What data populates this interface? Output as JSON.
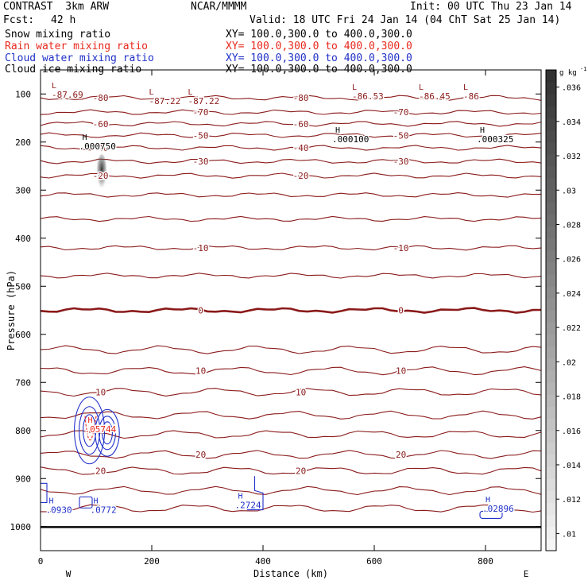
{
  "header": {
    "title": "CONTRAST  3km ARW",
    "model": "NCAR/MMMM",
    "init": "Init: 00 UTC Thu 23 Jan 14",
    "fcst_label": "Fcst:",
    "fcst_value": "42 h",
    "valid": "Valid: 18 UTC Fri 24 Jan 14 (04 ChT Sat 25 Jan 14)"
  },
  "fields": [
    {
      "name": "Snow mixing ratio",
      "xy": "XY= 100.0,300.0 to 400.0,300.0",
      "color": "#000000"
    },
    {
      "name": "Rain water mixing ratio",
      "xy": "XY= 100.0,300.0 to 400.0,300.0",
      "color": "#e8281c"
    },
    {
      "name": "Cloud water mixing ratio",
      "xy": "XY= 100.0,300.0 to 400.0,300.0",
      "color": "#2030c8"
    },
    {
      "name": "Cloud ice mixing ratio",
      "xy": "XY= 100.0,300.0 to 400.0,300.0",
      "color": "#000000"
    }
  ],
  "chart_data": {
    "type": "contour",
    "xlabel": "Distance (km)",
    "ylabel": "Pressure (hPa)",
    "xlim": [
      0,
      900
    ],
    "ylim": [
      1050,
      50
    ],
    "x_ticks": [
      0,
      200,
      400,
      600,
      800
    ],
    "y_ticks": [
      100,
      200,
      300,
      400,
      500,
      600,
      700,
      800,
      900,
      1000
    ],
    "left_end_label": "W",
    "right_end_label": "E",
    "colorbar": {
      "unit": "g kg",
      "unit_exp": "-1",
      "ticks": [
        ".01",
        ".012",
        ".014",
        ".016",
        ".018",
        ".02",
        ".022",
        ".024",
        ".026",
        ".028",
        ".03",
        ".032",
        ".034",
        ".036"
      ],
      "min": 0.009,
      "max": 0.037
    },
    "temperature_contours": [
      {
        "p": 108,
        "label": "-80"
      },
      {
        "p": 138,
        "label": "-70"
      },
      {
        "p": 162,
        "label": "-60"
      },
      {
        "p": 186,
        "label": "-50"
      },
      {
        "p": 212,
        "label": "-40"
      },
      {
        "p": 240,
        "label": "-30"
      },
      {
        "p": 270,
        "label": "-20"
      },
      {
        "p": 310,
        "label": ""
      },
      {
        "p": 360,
        "label": ""
      },
      {
        "p": 420,
        "label": "-10"
      },
      {
        "p": 478,
        "label": ""
      },
      {
        "p": 550,
        "label": "0"
      },
      {
        "p": 632,
        "label": ""
      },
      {
        "p": 676,
        "label": "10"
      },
      {
        "p": 720,
        "label": "10"
      },
      {
        "p": 768,
        "label": ""
      },
      {
        "p": 808,
        "label": ""
      },
      {
        "p": 850,
        "label": "20"
      },
      {
        "p": 884,
        "label": "20"
      },
      {
        "p": 925,
        "label": ""
      },
      {
        "p": 962,
        "label": ""
      }
    ],
    "lows": [
      {
        "x": 20,
        "p": 88,
        "label": "-87.69"
      },
      {
        "x": 195,
        "p": 101,
        "label": "-87.22"
      },
      {
        "x": 265,
        "p": 101,
        "label": "-87.22"
      },
      {
        "x": 560,
        "p": 91,
        "label": "-86.53"
      },
      {
        "x": 680,
        "p": 91,
        "label": "-86.45"
      },
      {
        "x": 760,
        "p": 91,
        "label": "-86"
      }
    ],
    "highs": [
      {
        "x": 75,
        "p": 212,
        "label": ".000750",
        "color": "#000000"
      },
      {
        "x": 530,
        "p": 197,
        "label": ".000100",
        "color": "#000000"
      },
      {
        "x": 790,
        "p": 197,
        "label": ".000325",
        "color": "#000000"
      },
      {
        "x": 85,
        "p": 800,
        "label": ".05744",
        "color": "#e8281c"
      },
      {
        "x": 15,
        "p": 968,
        "label": ".0930",
        "color": "#2030c8"
      },
      {
        "x": 95,
        "p": 968,
        "label": ".0772",
        "color": "#2030c8"
      },
      {
        "x": 355,
        "p": 958,
        "label": ".2724",
        "color": "#2030c8"
      },
      {
        "x": 800,
        "p": 966,
        "label": ".02896",
        "color": "#2030c8"
      }
    ]
  }
}
